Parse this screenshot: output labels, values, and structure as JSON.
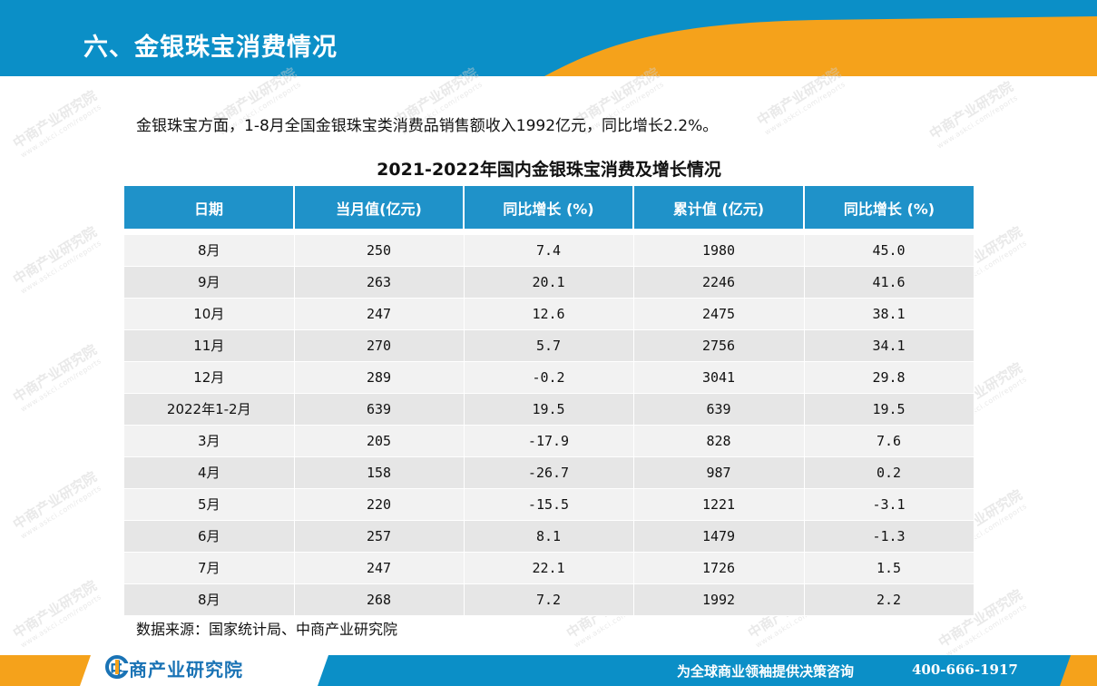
{
  "header": {
    "title": "六、金银珠宝消费情况"
  },
  "intro": {
    "text": "金银珠宝方面，1-8月全国金银珠宝类消费品销售额收入1992亿元，同比增长2.2%。"
  },
  "table": {
    "title": "2021-2022年国内金银珠宝消费及增长情况",
    "columns": [
      "日期",
      "当月值(亿元)",
      "同比增长 (%)",
      "累计值 (亿元)",
      "同比增长 (%)"
    ],
    "rows": [
      [
        "8月",
        "250",
        "7.4",
        "1980",
        "45.0"
      ],
      [
        "9月",
        "263",
        "20.1",
        "2246",
        "41.6"
      ],
      [
        "10月",
        "247",
        "12.6",
        "2475",
        "38.1"
      ],
      [
        "11月",
        "270",
        "5.7",
        "2756",
        "34.1"
      ],
      [
        "12月",
        "289",
        "-0.2",
        "3041",
        "29.8"
      ],
      [
        "2022年1-2月",
        "639",
        "19.5",
        "639",
        "19.5"
      ],
      [
        "3月",
        "205",
        "-17.9",
        "828",
        "7.6"
      ],
      [
        "4月",
        "158",
        "-26.7",
        "987",
        "0.2"
      ],
      [
        "5月",
        "220",
        "-15.5",
        "1221",
        "-3.1"
      ],
      [
        "6月",
        "257",
        "8.1",
        "1479",
        "-1.3"
      ],
      [
        "7月",
        "247",
        "22.1",
        "1726",
        "1.5"
      ],
      [
        "8月",
        "268",
        "7.2",
        "1992",
        "2.2"
      ]
    ]
  },
  "source": {
    "text": "数据来源：国家统计局、中商产业研究院"
  },
  "footer": {
    "logo_text": "中商产业研究院",
    "slogan": "为全球商业领袖提供决策咨询",
    "phone": "400-666-1917"
  },
  "watermark": {
    "text": "中商产业研究院",
    "sub": "www.askci.com/reports"
  },
  "colors": {
    "header_blue": "#0b8fc7",
    "accent_orange": "#f5a21b",
    "table_header": "#1f92c9",
    "row_gray": "#e6e6e6"
  }
}
